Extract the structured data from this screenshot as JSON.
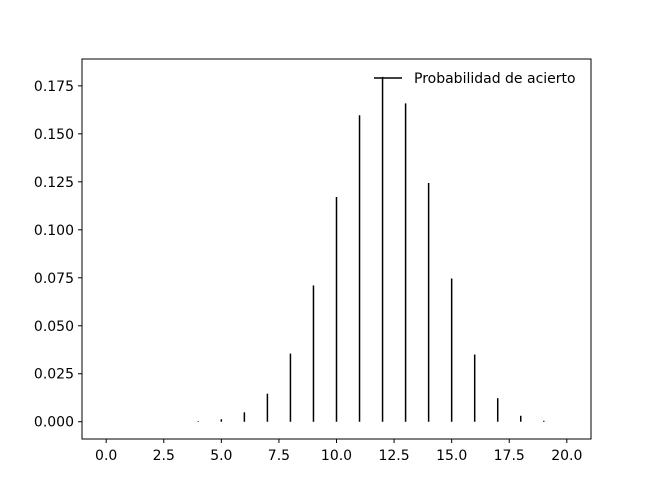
{
  "chart_data": {
    "type": "bar",
    "style": "vlines",
    "color": "#000000",
    "legend": {
      "label": "Probabilidad de acierto",
      "placement": "upper-right"
    },
    "xlim": [
      -1.05,
      21.05
    ],
    "ylim": [
      -0.009,
      0.189
    ],
    "xticks": [
      0.0,
      2.5,
      5.0,
      7.5,
      10.0,
      12.5,
      15.0,
      17.5,
      20.0
    ],
    "xtick_labels": [
      "0.0",
      "2.5",
      "5.0",
      "7.5",
      "10.0",
      "12.5",
      "15.0",
      "17.5",
      "20.0"
    ],
    "yticks": [
      0.0,
      0.025,
      0.05,
      0.075,
      0.1,
      0.125,
      0.15,
      0.175
    ],
    "ytick_labels": [
      "0.000",
      "0.025",
      "0.050",
      "0.075",
      "0.100",
      "0.125",
      "0.150",
      "0.175"
    ],
    "grid": false,
    "x": [
      0,
      1,
      2,
      3,
      4,
      5,
      6,
      7,
      8,
      9,
      10,
      11,
      12,
      13,
      14,
      15,
      16,
      17,
      18,
      19,
      20
    ],
    "values": [
      0.0,
      0.0,
      0.0,
      0.0,
      0.0003,
      0.0013,
      0.0049,
      0.0146,
      0.0355,
      0.071,
      0.1171,
      0.1597,
      0.1797,
      0.1659,
      0.1244,
      0.0746,
      0.035,
      0.0123,
      0.0031,
      0.0005,
      0.0
    ]
  }
}
